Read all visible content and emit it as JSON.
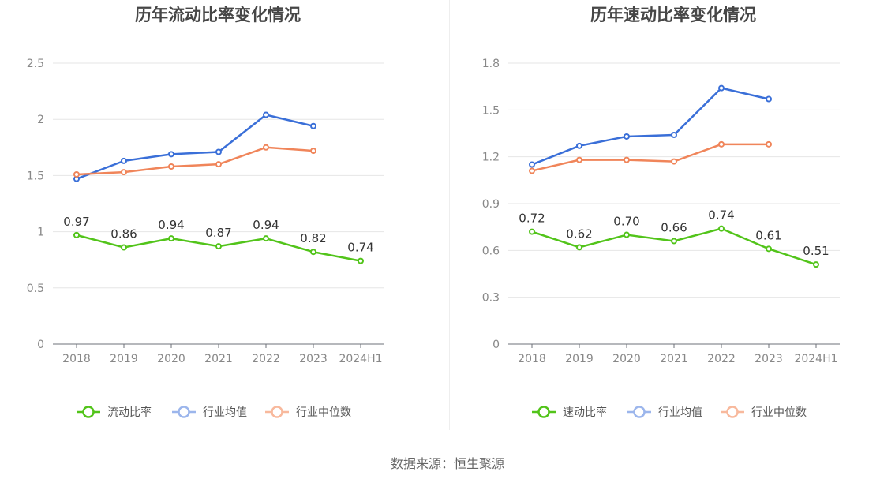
{
  "source_text": "数据来源：恒生聚源",
  "colors": {
    "green": "#52c41a",
    "blue": "#3a6fd8",
    "orange": "#f0855a",
    "blue_legend": "#9cb6ec",
    "orange_legend": "#f8b99d"
  },
  "chart_data": [
    {
      "type": "line",
      "title": "历年流动比率变化情况",
      "categories": [
        "2018",
        "2019",
        "2020",
        "2021",
        "2022",
        "2023",
        "2024H1"
      ],
      "ylim": [
        0,
        2.5
      ],
      "yticks": [
        "0",
        "0.5",
        "1",
        "1.5",
        "2",
        "2.5"
      ],
      "grid": true,
      "legend_position": "bottom",
      "series": [
        {
          "name": "流动比率",
          "color": "#52c41a",
          "legend_color": "#52c41a",
          "values": [
            0.97,
            0.86,
            0.94,
            0.87,
            0.94,
            0.82,
            0.74
          ],
          "labels": [
            "0.97",
            "0.86",
            "0.94",
            "0.87",
            "0.94",
            "0.82",
            "0.74"
          ]
        },
        {
          "name": "行业均值",
          "color": "#3a6fd8",
          "legend_color": "#9cb6ec",
          "values": [
            1.47,
            1.63,
            1.69,
            1.71,
            2.04,
            1.94,
            null
          ]
        },
        {
          "name": "行业中位数",
          "color": "#f0855a",
          "legend_color": "#f8b99d",
          "values": [
            1.51,
            1.53,
            1.58,
            1.6,
            1.75,
            1.72,
            null
          ]
        }
      ]
    },
    {
      "type": "line",
      "title": "历年速动比率变化情况",
      "categories": [
        "2018",
        "2019",
        "2020",
        "2021",
        "2022",
        "2023",
        "2024H1"
      ],
      "ylim": [
        0,
        1.8
      ],
      "yticks": [
        "0",
        "0.3",
        "0.6",
        "0.9",
        "1.2",
        "1.5",
        "1.8"
      ],
      "grid": true,
      "legend_position": "bottom",
      "series": [
        {
          "name": "速动比率",
          "color": "#52c41a",
          "legend_color": "#52c41a",
          "values": [
            0.72,
            0.62,
            0.7,
            0.66,
            0.74,
            0.61,
            0.51
          ],
          "labels": [
            "0.72",
            "0.62",
            "0.70",
            "0.66",
            "0.74",
            "0.61",
            "0.51"
          ]
        },
        {
          "name": "行业均值",
          "color": "#3a6fd8",
          "legend_color": "#9cb6ec",
          "values": [
            1.15,
            1.27,
            1.33,
            1.34,
            1.64,
            1.57,
            null
          ]
        },
        {
          "name": "行业中位数",
          "color": "#f0855a",
          "legend_color": "#f8b99d",
          "values": [
            1.11,
            1.18,
            1.18,
            1.17,
            1.28,
            1.28,
            null
          ]
        }
      ]
    }
  ]
}
